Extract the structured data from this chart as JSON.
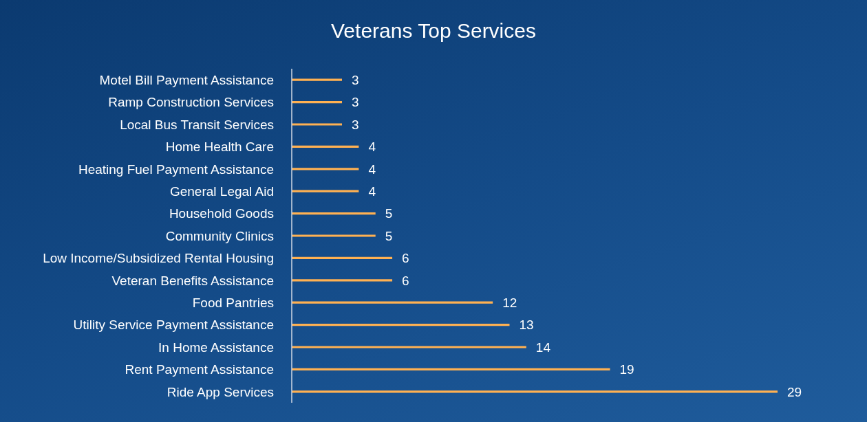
{
  "chart_data": {
    "type": "bar",
    "title": "Veterans Top Services",
    "orientation": "horizontal",
    "data_labels": true,
    "legend": false,
    "grid": false,
    "categories": [
      "Motel Bill Payment Assistance",
      "Ramp Construction Services",
      "Local Bus Transit Services",
      "Home Health Care",
      "Heating Fuel Payment Assistance",
      "General Legal Aid",
      "Household Goods",
      "Community Clinics",
      "Low Income/Subsidized Rental Housing",
      "Veteran Benefits Assistance",
      "Food Pantries",
      "Utility Service Payment Assistance",
      "In Home Assistance",
      "Rent Payment Assistance",
      "Ride App Services"
    ],
    "values": [
      3,
      3,
      3,
      4,
      4,
      4,
      5,
      5,
      6,
      6,
      12,
      13,
      14,
      19,
      29
    ],
    "color": "#ffb152"
  }
}
